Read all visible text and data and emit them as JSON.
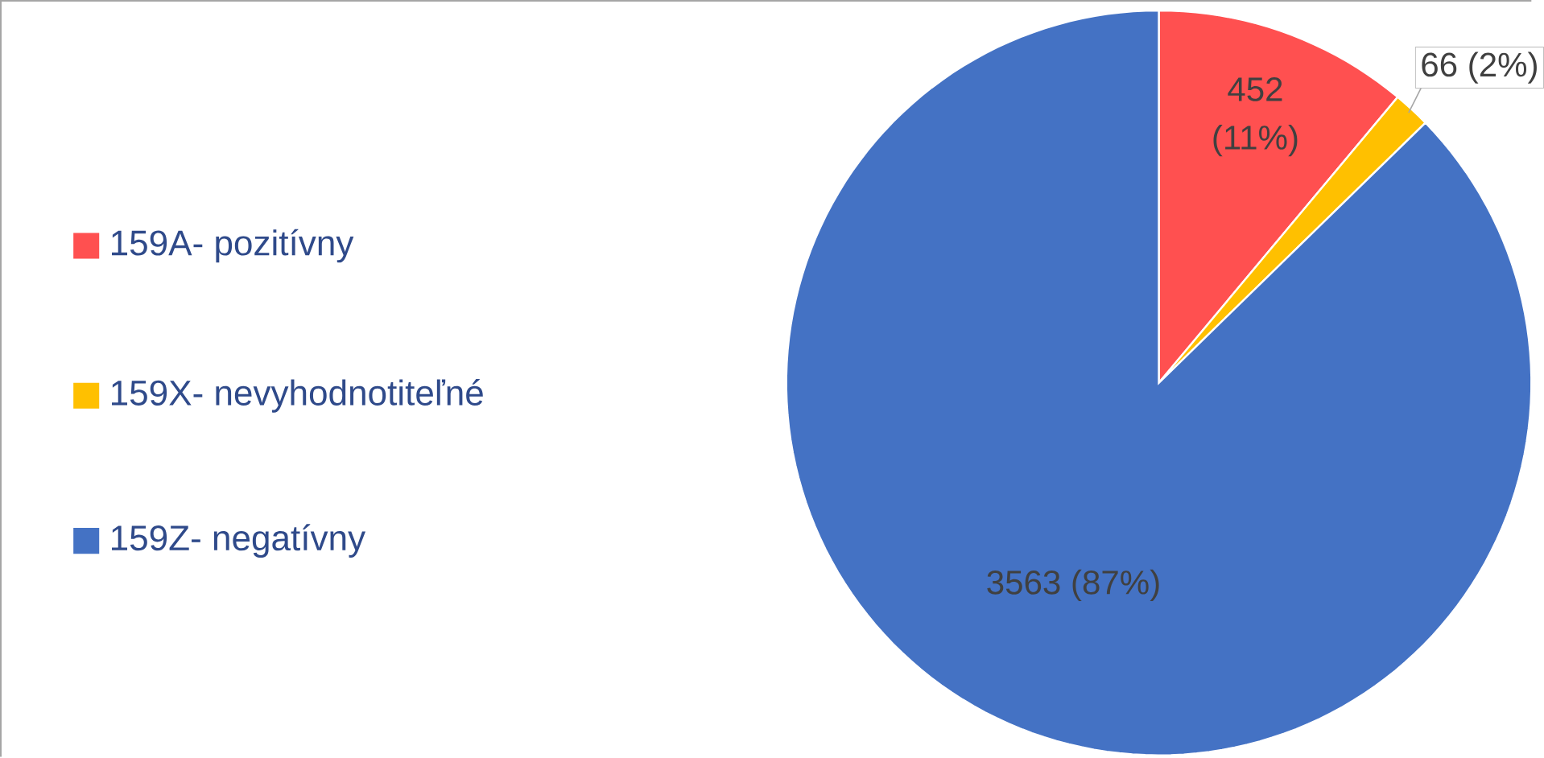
{
  "chart_data": {
    "type": "pie",
    "categories": [
      "159A- pozitívny",
      "159X- nevyhodnotiteľné",
      "159Z- negatívny"
    ],
    "values": [
      452,
      66,
      3563
    ],
    "colors": [
      "#ff5050",
      "#ffc000",
      "#4472c4"
    ],
    "value_labels": [
      "452 (11%)",
      "66 (2%)",
      "3563 (87%)"
    ],
    "legend": "left"
  }
}
